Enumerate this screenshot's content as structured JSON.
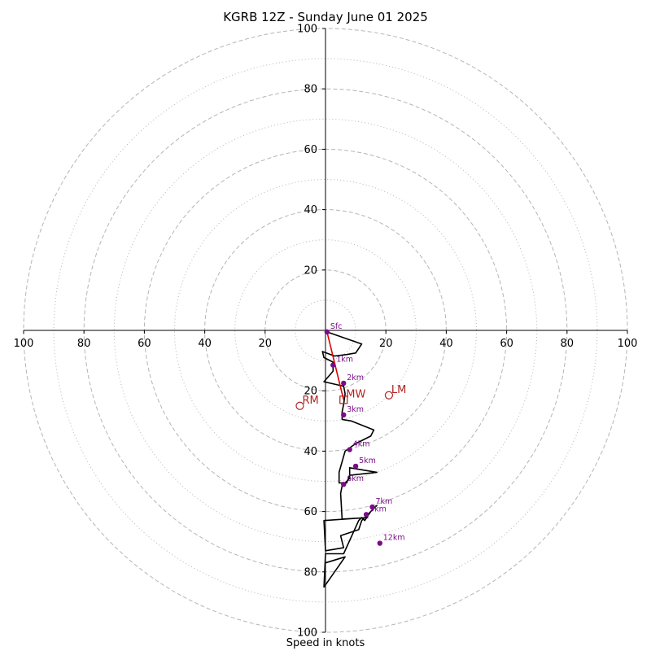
{
  "chart_data": {
    "type": "hodograph",
    "title": "KGRB 12Z - Sunday June 01 2025",
    "xlabel": "Speed in knots",
    "range": [
      -100,
      100
    ],
    "ring_major": [
      20,
      40,
      60,
      80,
      100
    ],
    "ring_minor": [
      10,
      30,
      50,
      70,
      90
    ],
    "x_ticks": [
      -100,
      -80,
      -60,
      -40,
      -20,
      20,
      40,
      60,
      80,
      100
    ],
    "x_tick_labels": [
      "100",
      "80",
      "60",
      "40",
      "20",
      "20",
      "40",
      "60",
      "80",
      "100"
    ],
    "y_ticks": [
      100,
      80,
      60,
      40,
      20,
      -20,
      -40,
      -60,
      -80,
      -100
    ],
    "y_tick_labels": [
      "100",
      "80",
      "60",
      "40",
      "20",
      "20",
      "40",
      "60",
      "80",
      "100"
    ],
    "trace": [
      [
        0.5,
        -0.5
      ],
      [
        12,
        -4.5
      ],
      [
        10,
        -7.5
      ],
      [
        7,
        -8
      ],
      [
        3,
        -8.5
      ],
      [
        -1,
        -7
      ],
      [
        -0.5,
        -9
      ],
      [
        2.5,
        -10.5
      ],
      [
        2.5,
        -13.5
      ],
      [
        -0.5,
        -17
      ],
      [
        6,
        -18.5
      ],
      [
        6.5,
        -21
      ],
      [
        6,
        -24.5
      ],
      [
        5.5,
        -27
      ],
      [
        5.5,
        -29.5
      ],
      [
        8.5,
        -30
      ],
      [
        16,
        -33
      ],
      [
        15,
        -35
      ],
      [
        10,
        -37.5
      ],
      [
        6.5,
        -40
      ],
      [
        4.5,
        -47
      ],
      [
        4.5,
        -50.5
      ],
      [
        7,
        -50.5
      ],
      [
        8,
        -48
      ],
      [
        17,
        -47
      ],
      [
        8,
        -45.5
      ],
      [
        8,
        -49
      ],
      [
        5.5,
        -51.5
      ],
      [
        5,
        -54
      ],
      [
        5.5,
        -62.5
      ],
      [
        14,
        -62
      ],
      [
        -0.5,
        -63
      ],
      [
        0,
        -73
      ],
      [
        6,
        -72
      ],
      [
        5,
        -68
      ],
      [
        11,
        -66
      ],
      [
        12,
        -63
      ],
      [
        17,
        -58
      ],
      [
        15,
        -60
      ],
      [
        13,
        -63
      ],
      [
        12,
        -62
      ],
      [
        11,
        -63
      ],
      [
        6,
        -74
      ],
      [
        0,
        -74
      ],
      [
        -0.5,
        -85
      ],
      [
        6.5,
        -75
      ],
      [
        0,
        -77
      ]
    ],
    "mean_wind_line": [
      [
        0.5,
        -0.5
      ],
      [
        6,
        -23
      ]
    ],
    "height_markers": [
      {
        "label": "Sfc",
        "x": 0.5,
        "y": -0.5
      },
      {
        "label": "1km",
        "x": 2.5,
        "y": -11.5
      },
      {
        "label": "2km",
        "x": 6,
        "y": -17.5
      },
      {
        "label": "3km",
        "x": 6,
        "y": -28
      },
      {
        "label": "4km",
        "x": 8,
        "y": -39.5
      },
      {
        "label": "5km",
        "x": 10,
        "y": -45
      },
      {
        "label": "6km",
        "x": 6,
        "y": -51
      },
      {
        "label": "7km",
        "x": 15.5,
        "y": -58.5
      },
      {
        "label": "9km",
        "x": 13.5,
        "y": -61
      },
      {
        "label": "12km",
        "x": 18,
        "y": -70.5
      }
    ],
    "storm_motions": [
      {
        "label": "RM",
        "x": -8.5,
        "y": -25,
        "marker": "circle"
      },
      {
        "label": "LM",
        "x": 21,
        "y": -21.5,
        "marker": "circle"
      },
      {
        "label": "MW",
        "x": 6,
        "y": -23,
        "marker": "square"
      }
    ],
    "colors": {
      "trace": "#000000",
      "mean_wind": "#e00000",
      "markers": "#7b0c87",
      "storm_motion": "#b22222",
      "rings": "#b5b5b5"
    }
  }
}
